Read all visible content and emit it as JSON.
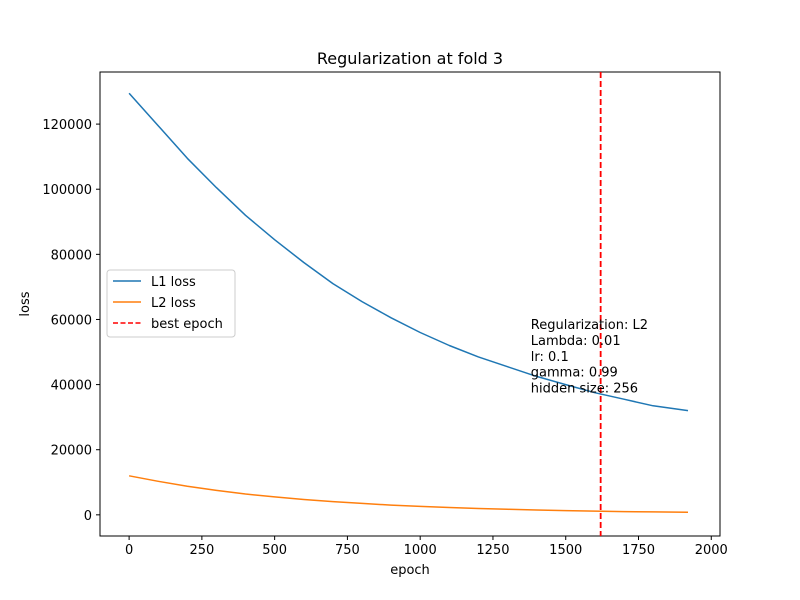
{
  "chart_data": {
    "type": "line",
    "title": "Regularization at fold 3",
    "xlabel": "epoch",
    "ylabel": "loss",
    "xlim": [
      -100,
      2030
    ],
    "ylim": [
      -6500,
      136000
    ],
    "xticks": [
      0,
      250,
      500,
      750,
      1000,
      1250,
      1500,
      1750,
      2000
    ],
    "yticks": [
      0,
      20000,
      40000,
      60000,
      80000,
      100000,
      120000
    ],
    "grid": false,
    "legend_position": "center-left",
    "series": [
      {
        "name": "L1 loss",
        "color": "#1f77b4",
        "x": [
          0,
          100,
          200,
          300,
          400,
          500,
          600,
          700,
          800,
          900,
          1000,
          1100,
          1200,
          1300,
          1400,
          1500,
          1600,
          1700,
          1800,
          1920
        ],
        "y": [
          129500,
          119500,
          109500,
          100500,
          92000,
          84500,
          77500,
          71000,
          65500,
          60500,
          56000,
          52000,
          48500,
          45500,
          42500,
          40000,
          37500,
          35500,
          33500,
          32000
        ]
      },
      {
        "name": "L2 loss",
        "color": "#ff7f0e",
        "x": [
          0,
          100,
          200,
          300,
          400,
          500,
          600,
          700,
          800,
          900,
          1000,
          1100,
          1200,
          1300,
          1400,
          1500,
          1600,
          1700,
          1800,
          1920
        ],
        "y": [
          12000,
          10300,
          8800,
          7500,
          6400,
          5500,
          4700,
          4050,
          3500,
          3000,
          2600,
          2250,
          1950,
          1700,
          1500,
          1300,
          1150,
          1000,
          900,
          800
        ]
      }
    ],
    "vline": {
      "name": "best epoch",
      "x": 1620,
      "color": "#ff0000",
      "style": "dashed"
    },
    "annotation": {
      "lines": [
        "Regularization: L2",
        "Lambda: 0.01",
        "lr: 0.1",
        "gamma: 0.99",
        "hidden size: 256"
      ],
      "x": 1380,
      "y": 57000
    }
  }
}
